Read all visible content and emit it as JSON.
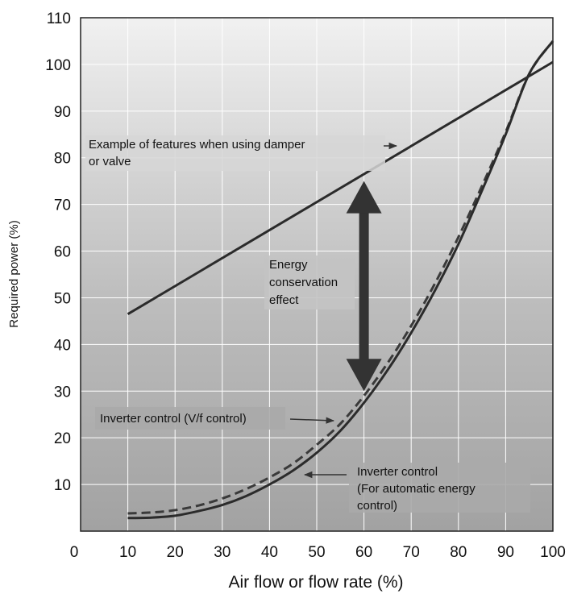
{
  "chart_data": {
    "type": "line",
    "xlabel": "Air flow or flow rate (%)",
    "ylabel": "Required power (%)",
    "xlim": [
      0,
      100
    ],
    "ylim": [
      0,
      110
    ],
    "x_ticks": [
      "0",
      "10",
      "20",
      "30",
      "40",
      "50",
      "60",
      "70",
      "80",
      "90",
      "100"
    ],
    "y_ticks": [
      "10",
      "20",
      "30",
      "40",
      "50",
      "60",
      "70",
      "80",
      "90",
      "100",
      "110"
    ],
    "grid": true,
    "series": [
      {
        "x": [
          10,
          100
        ],
        "y": [
          46.5,
          100.5
        ],
        "color": "#2b2b2b",
        "dash": false
      },
      {
        "x": [
          10,
          15,
          20,
          25,
          30,
          35,
          40,
          45,
          50,
          55,
          60,
          65,
          70,
          75,
          80,
          85,
          90,
          95,
          100
        ],
        "y": [
          3.8,
          4.0,
          4.5,
          5.5,
          7.0,
          9.0,
          11.5,
          14.5,
          18.5,
          23.0,
          29.0,
          36.0,
          44.0,
          53.0,
          63.0,
          74.0,
          85.5,
          98.0,
          105.0
        ],
        "color": "#3a3a3a",
        "dash": true
      },
      {
        "x": [
          10,
          15,
          20,
          25,
          30,
          35,
          40,
          45,
          50,
          55,
          60,
          65,
          70,
          75,
          80,
          85,
          90,
          95,
          100
        ],
        "y": [
          2.8,
          2.9,
          3.3,
          4.3,
          5.6,
          7.5,
          10.0,
          13.0,
          16.8,
          21.5,
          27.5,
          34.5,
          42.5,
          51.5,
          61.5,
          73.0,
          85.0,
          98.0,
          105.0
        ],
        "color": "#2b2b2b",
        "dash": false
      }
    ],
    "annotations": [
      {
        "lines": [
          "Example of features when using damper",
          "or valve"
        ]
      },
      {
        "lines": [
          "Energy",
          "conservation",
          "effect"
        ]
      },
      {
        "lines": [
          "Inverter control (V/f control)"
        ]
      },
      {
        "lines": [
          "Inverter control",
          "(For automatic energy",
          "control)"
        ]
      }
    ],
    "double_arrow": {
      "x": 60,
      "y_top": 75,
      "y_bottom": 30,
      "color": "#333333"
    }
  }
}
